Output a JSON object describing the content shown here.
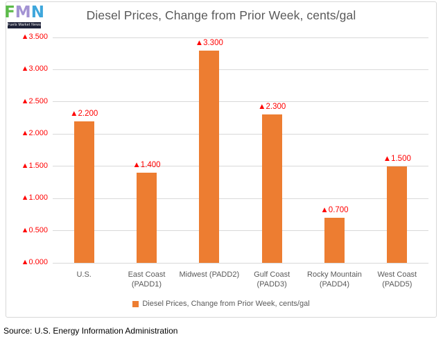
{
  "logo": {
    "letters": [
      {
        "char": "F",
        "color": "#5cbb4a"
      },
      {
        "char": "M",
        "color": "#a championship"
      },
      {
        "char": "N",
        "color": "#3fa7dc"
      }
    ],
    "strip_text": "Fuels Market News"
  },
  "header": {
    "title": "Diesel Prices, Change from Prior Week, cents/gal"
  },
  "chart_data": {
    "type": "bar",
    "title": "Diesel Prices, Change from Prior Week, cents/gal",
    "categories": [
      "U.S.",
      "East Coast (PADD1)",
      "Midwest (PADD2)",
      "Gulf Coast (PADD3)",
      "Rocky Mountain (PADD4)",
      "West Coast (PADD5)"
    ],
    "category_lines": [
      [
        "U.S."
      ],
      [
        "East Coast",
        "(PADD1)"
      ],
      [
        "Midwest (PADD2)"
      ],
      [
        "Gulf Coast",
        "(PADD3)"
      ],
      [
        "Rocky Mountain",
        "(PADD4)"
      ],
      [
        "West Coast",
        "(PADD5)"
      ]
    ],
    "values": [
      2.2,
      1.4,
      3.3,
      2.3,
      0.7,
      1.5
    ],
    "data_labels": [
      "▲2.200",
      "▲1.400",
      "▲3.300",
      "▲2.300",
      "▲0.700",
      "▲1.500"
    ],
    "ylim": [
      0,
      3.5
    ],
    "tick_step": 0.5,
    "y_tick_labels": [
      "▲0.000",
      "▲0.500",
      "▲1.000",
      "▲1.500",
      "▲2.000",
      "▲2.500",
      "▲3.000",
      "▲3.500"
    ],
    "bar_color": "#ED7D31",
    "label_color": "#FF0000",
    "grid_color": "#d9d9d9",
    "grid": true,
    "legend_position": "bottom"
  },
  "legend": {
    "label": "Diesel Prices, Change from Prior Week, cents/gal",
    "swatch_color": "#ED7D31"
  },
  "source": {
    "text": "Source: U.S. Energy Information Administration"
  }
}
